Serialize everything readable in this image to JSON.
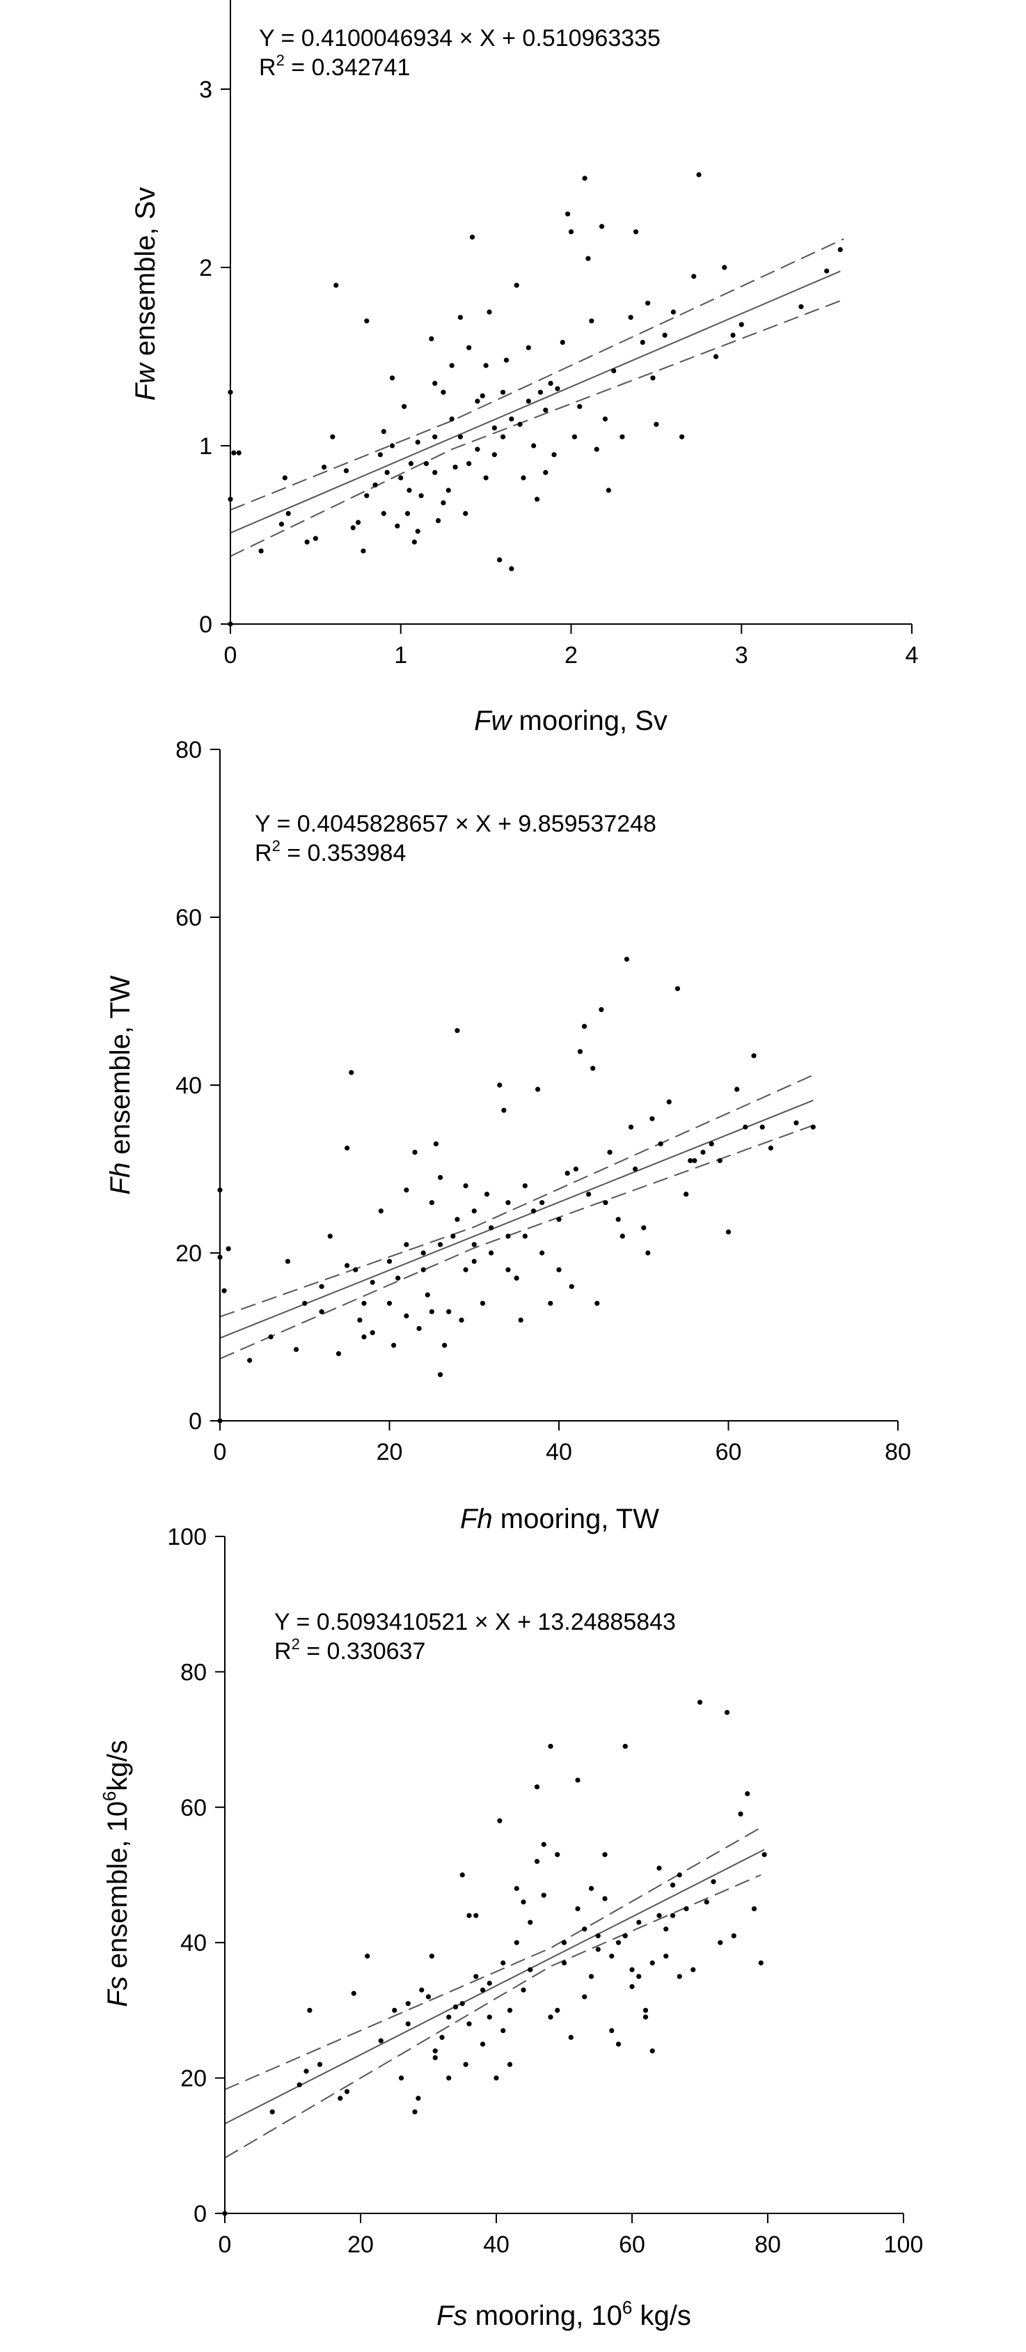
{
  "chart_data": [
    {
      "type": "scatter",
      "title": "",
      "xlabel_var": "Fw",
      "xlabel_rest": " mooring, Sv",
      "ylabel_var": "Fw",
      "ylabel_rest": " ensemble, Sv",
      "xlim": [
        0,
        4
      ],
      "ylim": [
        0,
        3.5
      ],
      "xticks": [
        0,
        1,
        2,
        3,
        4
      ],
      "yticks": [
        0,
        1,
        2,
        3
      ],
      "equation": "Y = 0.4100046934 × X + 0.510963335",
      "r2_prefix": "R",
      "r2_sup": "2",
      "r2_value": " = 0.342741",
      "fit": {
        "slope": 0.4100046934,
        "intercept": 0.510963335
      },
      "ci_low": [
        [
          0,
          0.38
        ],
        [
          1.3,
          0.98
        ],
        [
          3.6,
          1.82
        ]
      ],
      "ci_high": [
        [
          0,
          0.64
        ],
        [
          1.3,
          1.14
        ],
        [
          3.6,
          2.16
        ]
      ],
      "points": [
        [
          0,
          0
        ],
        [
          0,
          1.3
        ],
        [
          0.02,
          0.96
        ],
        [
          0,
          0.7
        ],
        [
          0.05,
          0.96
        ],
        [
          0.18,
          0.41
        ],
        [
          0.3,
          0.56
        ],
        [
          0.32,
          0.82
        ],
        [
          0.34,
          0.62
        ],
        [
          0.45,
          0.46
        ],
        [
          0.5,
          0.48
        ],
        [
          0.55,
          0.88
        ],
        [
          0.6,
          1.05
        ],
        [
          0.62,
          1.9
        ],
        [
          0.68,
          0.86
        ],
        [
          0.72,
          0.54
        ],
        [
          0.75,
          0.57
        ],
        [
          0.78,
          0.41
        ],
        [
          0.8,
          1.7
        ],
        [
          0.85,
          0.78
        ],
        [
          0.88,
          0.95
        ],
        [
          0.9,
          0.62
        ],
        [
          0.92,
          0.85
        ],
        [
          0.95,
          1.38
        ],
        [
          0.98,
          0.55
        ],
        [
          1.0,
          0.82
        ],
        [
          1.02,
          1.22
        ],
        [
          1.04,
          0.62
        ],
        [
          1.06,
          0.9
        ],
        [
          1.08,
          0.46
        ],
        [
          1.1,
          1.02
        ],
        [
          1.12,
          0.72
        ],
        [
          1.15,
          0.9
        ],
        [
          1.18,
          1.6
        ],
        [
          1.2,
          1.05
        ],
        [
          1.22,
          0.58
        ],
        [
          1.25,
          1.3
        ],
        [
          1.28,
          0.75
        ],
        [
          1.3,
          1.15
        ],
        [
          1.32,
          0.88
        ],
        [
          1.35,
          1.72
        ],
        [
          1.38,
          0.62
        ],
        [
          1.4,
          1.55
        ],
        [
          1.42,
          2.17
        ],
        [
          1.45,
          0.98
        ],
        [
          1.48,
          1.28
        ],
        [
          1.5,
          0.82
        ],
        [
          1.52,
          1.75
        ],
        [
          1.55,
          1.1
        ],
        [
          1.58,
          0.36
        ],
        [
          1.6,
          1.3
        ],
        [
          1.62,
          1.48
        ],
        [
          1.65,
          0.31
        ],
        [
          1.68,
          1.9
        ],
        [
          1.7,
          1.12
        ],
        [
          1.72,
          0.82
        ],
        [
          1.75,
          1.55
        ],
        [
          1.78,
          1.0
        ],
        [
          1.8,
          0.7
        ],
        [
          1.82,
          1.3
        ],
        [
          1.85,
          1.2
        ],
        [
          1.88,
          1.35
        ],
        [
          1.9,
          0.95
        ],
        [
          1.92,
          1.32
        ],
        [
          1.95,
          1.58
        ],
        [
          1.98,
          2.3
        ],
        [
          2.0,
          2.2
        ],
        [
          2.02,
          1.05
        ],
        [
          2.05,
          1.22
        ],
        [
          2.08,
          2.5
        ],
        [
          2.1,
          2.05
        ],
        [
          2.12,
          1.7
        ],
        [
          2.15,
          0.98
        ],
        [
          2.18,
          2.23
        ],
        [
          2.2,
          1.15
        ],
        [
          2.22,
          0.75
        ],
        [
          2.25,
          1.42
        ],
        [
          2.3,
          1.05
        ],
        [
          2.35,
          1.72
        ],
        [
          2.38,
          2.2
        ],
        [
          2.42,
          1.58
        ],
        [
          2.45,
          1.8
        ],
        [
          2.48,
          1.38
        ],
        [
          2.5,
          1.12
        ],
        [
          2.55,
          1.62
        ],
        [
          2.6,
          1.75
        ],
        [
          2.65,
          1.05
        ],
        [
          2.72,
          1.95
        ],
        [
          2.75,
          2.52
        ],
        [
          2.85,
          1.5
        ],
        [
          2.9,
          2.0
        ],
        [
          2.95,
          1.62
        ],
        [
          3.0,
          1.68
        ],
        [
          3.35,
          1.78
        ],
        [
          3.5,
          1.98
        ],
        [
          3.58,
          2.1
        ],
        [
          1.1,
          0.52
        ],
        [
          1.2,
          0.85
        ],
        [
          1.35,
          1.05
        ],
        [
          1.45,
          1.25
        ],
        [
          1.55,
          0.95
        ],
        [
          1.65,
          1.15
        ],
        [
          1.75,
          1.25
        ],
        [
          1.25,
          0.68
        ],
        [
          0.95,
          1.0
        ],
        [
          1.05,
          0.75
        ],
        [
          1.4,
          0.9
        ],
        [
          1.6,
          1.05
        ],
        [
          1.85,
          0.85
        ],
        [
          1.5,
          1.45
        ],
        [
          1.3,
          1.45
        ],
        [
          1.2,
          1.35
        ],
        [
          0.8,
          0.72
        ],
        [
          0.9,
          1.08
        ]
      ]
    },
    {
      "type": "scatter",
      "title": "",
      "xlabel_var": "Fh",
      "xlabel_rest": " mooring, TW",
      "ylabel_var": "Fh",
      "ylabel_rest": " ensemble, TW",
      "xlim": [
        0,
        80
      ],
      "ylim": [
        0,
        80
      ],
      "xticks": [
        0,
        20,
        40,
        60,
        80
      ],
      "yticks": [
        0,
        20,
        40,
        60,
        80
      ],
      "equation": "Y = 0.4045828657 × X + 9.859537248",
      "r2_prefix": "R",
      "r2_sup": "2",
      "r2_value": " = 0.353984",
      "fit": {
        "slope": 0.4045828657,
        "intercept": 9.859537248
      },
      "ci_low": [
        [
          0,
          7.4
        ],
        [
          30,
          20.6
        ],
        [
          70,
          35.2
        ]
      ],
      "ci_high": [
        [
          0,
          12.4
        ],
        [
          30,
          23.1
        ],
        [
          70,
          41.2
        ]
      ],
      "points": [
        [
          0,
          0
        ],
        [
          0,
          27.5
        ],
        [
          0,
          19.5
        ],
        [
          0.5,
          15.5
        ],
        [
          1,
          20.5
        ],
        [
          3.5,
          7.2
        ],
        [
          6,
          10
        ],
        [
          8,
          19
        ],
        [
          9,
          8.5
        ],
        [
          10,
          14
        ],
        [
          12,
          16
        ],
        [
          13,
          22
        ],
        [
          14,
          8
        ],
        [
          15,
          32.5
        ],
        [
          15.5,
          41.5
        ],
        [
          16,
          18
        ],
        [
          16.5,
          12
        ],
        [
          17,
          10
        ],
        [
          18,
          16.5
        ],
        [
          19,
          25
        ],
        [
          20,
          14
        ],
        [
          20.5,
          9
        ],
        [
          21,
          17
        ],
        [
          22,
          27.5
        ],
        [
          23,
          32
        ],
        [
          23.5,
          11
        ],
        [
          24,
          20
        ],
        [
          24.5,
          15
        ],
        [
          25,
          26
        ],
        [
          25.5,
          33
        ],
        [
          26,
          5.5
        ],
        [
          26.5,
          9
        ],
        [
          27,
          13
        ],
        [
          27.5,
          22
        ],
        [
          28,
          46.5
        ],
        [
          28.5,
          12
        ],
        [
          29,
          18
        ],
        [
          30,
          25
        ],
        [
          31,
          14
        ],
        [
          31.5,
          27
        ],
        [
          32,
          20
        ],
        [
          33,
          40
        ],
        [
          33.5,
          37
        ],
        [
          34,
          22
        ],
        [
          35,
          17
        ],
        [
          35.5,
          12
        ],
        [
          36,
          28
        ],
        [
          37,
          25
        ],
        [
          37.5,
          39.5
        ],
        [
          38,
          20
        ],
        [
          39,
          14
        ],
        [
          40,
          18
        ],
        [
          41,
          29.5
        ],
        [
          41.5,
          16
        ],
        [
          42,
          30
        ],
        [
          42.5,
          44
        ],
        [
          43,
          47
        ],
        [
          43.5,
          27
        ],
        [
          44,
          42
        ],
        [
          44.5,
          14
        ],
        [
          45,
          49
        ],
        [
          45.5,
          26
        ],
        [
          46,
          32
        ],
        [
          47,
          24
        ],
        [
          47.5,
          22
        ],
        [
          48,
          55
        ],
        [
          48.5,
          35
        ],
        [
          49,
          30
        ],
        [
          50,
          23
        ],
        [
          50.5,
          20
        ],
        [
          51,
          36
        ],
        [
          52,
          33
        ],
        [
          53,
          38
        ],
        [
          54,
          51.5
        ],
        [
          55,
          27
        ],
        [
          55.5,
          31
        ],
        [
          56,
          31
        ],
        [
          57,
          32
        ],
        [
          58,
          33
        ],
        [
          59,
          31
        ],
        [
          60,
          22.5
        ],
        [
          61,
          39.5
        ],
        [
          62,
          35
        ],
        [
          63,
          43.5
        ],
        [
          64,
          35
        ],
        [
          65,
          32.5
        ],
        [
          68,
          35.5
        ],
        [
          70,
          35
        ],
        [
          18,
          10.5
        ],
        [
          22,
          12.5
        ],
        [
          24,
          18
        ],
        [
          26,
          21
        ],
        [
          28,
          24
        ],
        [
          30,
          19
        ],
        [
          32,
          23
        ],
        [
          34,
          18
        ],
        [
          36,
          22
        ],
        [
          38,
          26
        ],
        [
          40,
          24
        ],
        [
          20,
          19
        ],
        [
          17,
          14
        ],
        [
          15,
          18.5
        ],
        [
          12,
          13
        ],
        [
          22,
          21
        ],
        [
          26,
          29
        ],
        [
          30,
          21
        ],
        [
          34,
          26
        ],
        [
          25,
          13
        ],
        [
          29,
          28
        ]
      ]
    },
    {
      "type": "scatter",
      "title": "",
      "xlabel_var": "Fs",
      "xlabel_rest": " mooring, 10",
      "xlabel_sup": "6",
      "xlabel_tail": " kg/s",
      "ylabel_var": "Fs",
      "ylabel_rest": " ensemble, 10",
      "ylabel_sup": "6",
      "ylabel_tail": "kg/s",
      "xlim": [
        0,
        100
      ],
      "ylim": [
        0,
        100
      ],
      "xticks": [
        0,
        20,
        40,
        60,
        80,
        100
      ],
      "yticks": [
        0,
        20,
        40,
        60,
        80,
        100
      ],
      "equation": "Y = 0.5093410521 × X + 13.24885843",
      "r2_prefix": "R",
      "r2_sup": "2",
      "r2_value": " = 0.330637",
      "fit": {
        "slope": 0.5093410521,
        "intercept": 13.24885843
      },
      "ci_low": [
        [
          0,
          8.2
        ],
        [
          48,
          36.5
        ],
        [
          79,
          50.0
        ]
      ],
      "ci_high": [
        [
          0,
          18.3
        ],
        [
          48,
          39.2
        ],
        [
          79,
          57.0
        ]
      ],
      "points": [
        [
          0,
          0
        ],
        [
          7,
          15
        ],
        [
          11,
          19
        ],
        [
          12,
          21
        ],
        [
          12.5,
          30
        ],
        [
          14,
          22
        ],
        [
          17,
          17
        ],
        [
          18,
          18
        ],
        [
          19,
          32.5
        ],
        [
          21,
          38
        ],
        [
          23,
          25.5
        ],
        [
          25,
          30
        ],
        [
          26,
          20
        ],
        [
          27,
          31
        ],
        [
          28,
          15
        ],
        [
          28.5,
          17
        ],
        [
          30,
          32
        ],
        [
          30.5,
          38
        ],
        [
          31,
          24
        ],
        [
          32,
          26
        ],
        [
          33,
          29
        ],
        [
          34,
          30.5
        ],
        [
          35,
          50
        ],
        [
          35.5,
          22
        ],
        [
          36,
          28
        ],
        [
          37,
          44
        ],
        [
          38,
          33
        ],
        [
          39,
          34
        ],
        [
          40,
          20
        ],
        [
          40.5,
          58
        ],
        [
          41,
          27
        ],
        [
          42,
          30
        ],
        [
          43,
          40
        ],
        [
          44,
          33
        ],
        [
          45,
          36
        ],
        [
          46,
          63
        ],
        [
          47,
          54.5
        ],
        [
          48,
          69
        ],
        [
          49,
          30
        ],
        [
          50,
          37
        ],
        [
          51,
          26
        ],
        [
          52,
          64
        ],
        [
          53,
          32
        ],
        [
          54,
          35
        ],
        [
          55,
          41
        ],
        [
          56,
          46.5
        ],
        [
          57,
          38
        ],
        [
          58,
          25
        ],
        [
          59,
          69
        ],
        [
          60,
          33.5
        ],
        [
          61,
          43
        ],
        [
          62,
          29
        ],
        [
          63,
          37
        ],
        [
          64,
          44
        ],
        [
          65,
          42
        ],
        [
          66,
          48.5
        ],
        [
          67,
          35
        ],
        [
          68,
          45
        ],
        [
          69,
          36
        ],
        [
          70,
          75.5
        ],
        [
          71,
          46
        ],
        [
          72,
          49
        ],
        [
          73,
          40
        ],
        [
          74,
          74
        ],
        [
          75,
          41
        ],
        [
          76,
          59
        ],
        [
          77,
          62
        ],
        [
          78,
          45
        ],
        [
          79,
          37
        ],
        [
          79.5,
          53
        ],
        [
          35,
          31
        ],
        [
          38,
          25
        ],
        [
          42,
          22
        ],
        [
          44,
          46
        ],
        [
          46,
          52
        ],
        [
          48,
          29
        ],
        [
          50,
          40
        ],
        [
          52,
          45
        ],
        [
          54,
          48
        ],
        [
          56,
          53
        ],
        [
          58,
          40
        ],
        [
          60,
          36
        ],
        [
          62,
          30
        ],
        [
          64,
          51
        ],
        [
          66,
          44
        ],
        [
          33,
          20
        ],
        [
          31,
          23
        ],
        [
          29,
          33
        ],
        [
          37,
          35
        ],
        [
          41,
          37
        ],
        [
          45,
          43
        ],
        [
          47,
          47
        ],
        [
          53,
          42
        ],
        [
          55,
          39
        ],
        [
          57,
          27
        ],
        [
          59,
          41
        ],
        [
          61,
          35
        ],
        [
          63,
          24
        ],
        [
          65,
          38
        ],
        [
          67,
          50
        ],
        [
          27,
          28
        ],
        [
          36,
          44
        ],
        [
          39,
          29
        ],
        [
          43,
          48
        ],
        [
          49,
          53
        ]
      ]
    }
  ]
}
